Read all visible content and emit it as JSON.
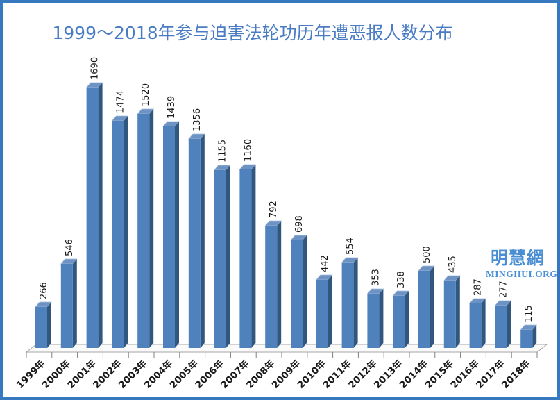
{
  "frame": {
    "border_color": "#3679c0",
    "background": "#ffffff"
  },
  "title": {
    "text": "1999～2018年参与迫害法轮功历年遭恶报人数分布",
    "color": "#4a7cc4"
  },
  "watermark": {
    "cn": "明慧網",
    "en": "MINGHUI.ORG",
    "color": "#4a8fd4"
  },
  "chart_data": {
    "type": "bar",
    "style": "3d",
    "title": "1999～2018年参与迫害法轮功历年遭恶报人数分布",
    "categories": [
      "1999年",
      "2000年",
      "2001年",
      "2002年",
      "2003年",
      "2004年",
      "2005年",
      "2006年",
      "2007年",
      "2008年",
      "2009年",
      "2010年",
      "2011年",
      "2012年",
      "2013年",
      "2014年",
      "2015年",
      "2016年",
      "2017年",
      "2018年"
    ],
    "values": [
      266,
      546,
      1690,
      1474,
      1520,
      1439,
      1356,
      1155,
      1160,
      792,
      698,
      442,
      554,
      353,
      338,
      500,
      435,
      287,
      277,
      115
    ],
    "xlabel": "",
    "ylabel": "",
    "ylim": [
      0,
      1800
    ],
    "grid": false,
    "legend": "none",
    "data_labels": true,
    "data_label_rotation": 90,
    "category_label_rotation": 45,
    "bar_color": "#4f81bd",
    "bar_side_color": "#31577f",
    "bar_top_color": "#6d93c4",
    "bar_top_edge_color": "#a3bcd9",
    "label_color": "#1a1a1a",
    "floor_color": "#fafafa",
    "floor_border_color": "#a6a6a6",
    "tick_color": "#808080"
  }
}
